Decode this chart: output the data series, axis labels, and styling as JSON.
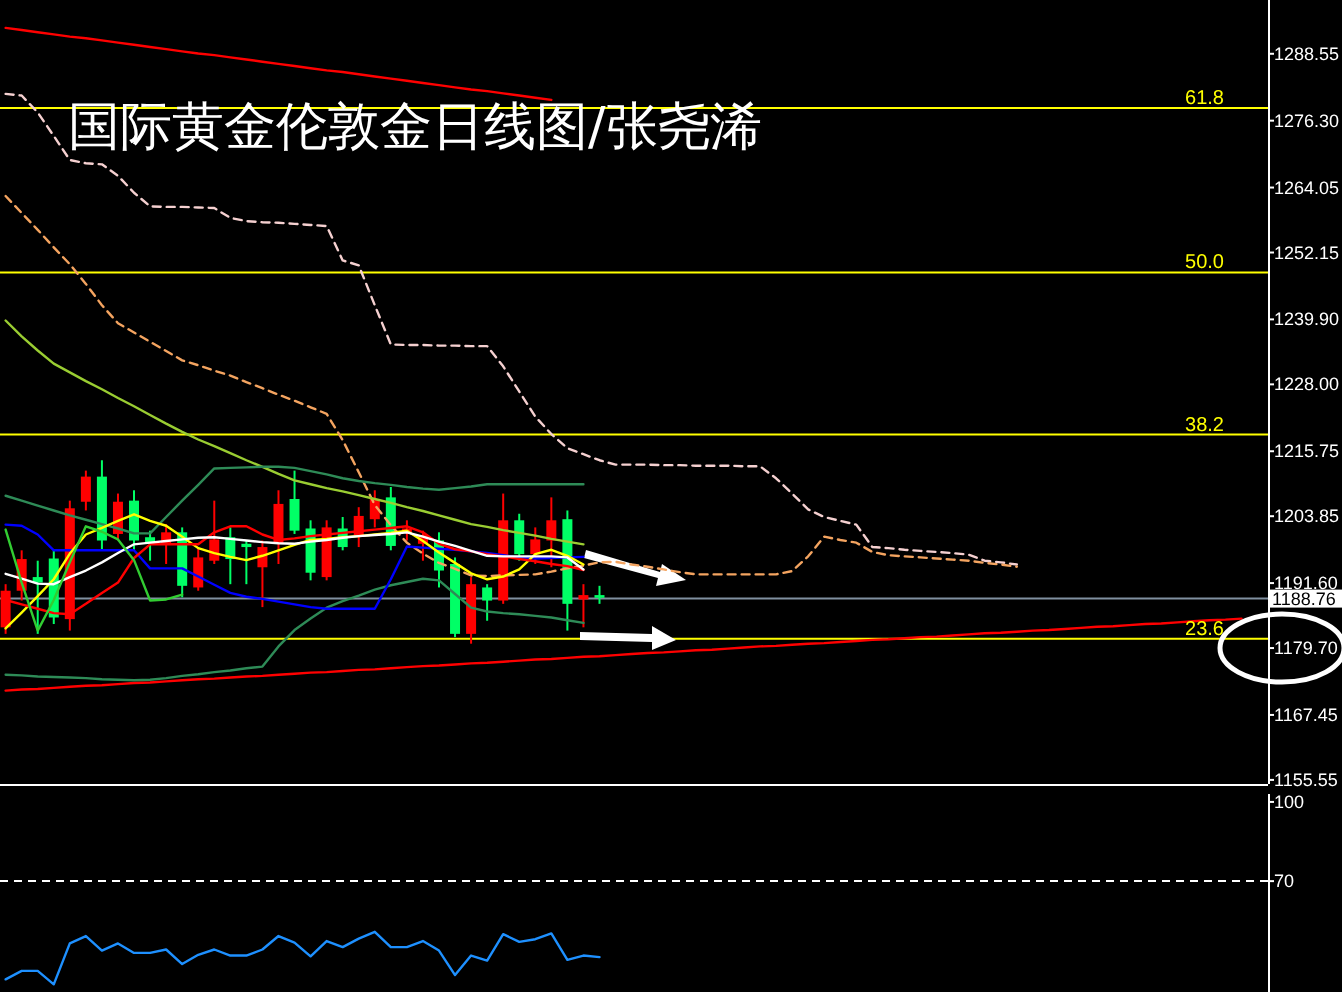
{
  "chart_data": [
    {
      "type": "candlestick",
      "title": "国际黄金伦敦金日线图/张尧浠",
      "tick_labels": "y",
      "ylim": [
        1154.8,
        1298.4
      ],
      "yticks": [
        1288.55,
        {
          "value": 1276.3,
          "label": "1276.30"
        },
        1264.05,
        1252.15,
        {
          "value": 1239.9,
          "label": "1239.90"
        },
        {
          "value": 1228,
          "label": "1228.00"
        },
        1215.75,
        1203.85,
        {
          "value": 1191.6,
          "label": "1191.60"
        },
        {
          "value": 1179.7,
          "label": "1179.70"
        },
        1167.45,
        1155.55
      ],
      "categories": [
        null,
        null,
        null,
        null,
        null,
        null,
        null,
        null,
        null,
        null,
        null,
        null,
        null,
        null,
        null,
        null,
        null,
        null,
        null,
        null,
        null,
        null,
        null,
        null,
        null,
        null,
        null,
        null,
        null,
        null,
        null,
        null,
        null,
        null,
        null,
        null,
        null,
        null,
        null,
        null,
        null,
        null,
        null,
        null,
        null,
        null,
        null,
        null,
        null,
        null,
        null,
        null,
        null,
        null,
        null,
        null,
        null,
        null,
        null,
        null,
        null,
        null,
        null,
        null,
        null,
        null,
        null,
        null,
        null,
        null,
        null,
        null,
        null,
        null,
        null,
        null,
        null,
        null,
        null
      ],
      "ohlc": [
        [
          1190.2,
          1191.4,
          1182.3,
          1183.5
        ],
        [
          1196.0,
          1197.6,
          1188.4,
          1190.2
        ],
        [
          1191.7,
          1195.7,
          1182.3,
          1192.7
        ],
        [
          1185.3,
          1197.6,
          1184.1,
          1196.1
        ],
        [
          1205.3,
          1206.7,
          1182.9,
          1185.0
        ],
        [
          1211.1,
          1212.2,
          1204.9,
          1206.5
        ],
        [
          1199.4,
          1214.1,
          1197.6,
          1211.1
        ],
        [
          1206.5,
          1208.0,
          1199.4,
          1200.6
        ],
        [
          1199.4,
          1208.6,
          1197.6,
          1206.7
        ],
        [
          1198.8,
          1201.2,
          1195.7,
          1200.0
        ],
        [
          1200.9,
          1202.4,
          1195.1,
          1198.8
        ],
        [
          1191.1,
          1201.8,
          1189.0,
          1200.9
        ],
        [
          1196.3,
          1198.2,
          1190.2,
          1190.8
        ],
        [
          1199.6,
          1206.7,
          1195.1,
          1195.7
        ],
        [
          1196.0,
          1201.8,
          1191.4,
          1200.0
        ],
        [
          1198.2,
          1199.4,
          1191.4,
          1198.8
        ],
        [
          1198.2,
          1199.4,
          1187.2,
          1194.5
        ],
        [
          1206.1,
          1208.6,
          1195.1,
          1198.8
        ],
        [
          1201.2,
          1212.2,
          1200.6,
          1207.0
        ],
        [
          1193.5,
          1203.1,
          1192.1,
          1201.6
        ],
        [
          1201.8,
          1203.1,
          1192.1,
          1192.7
        ],
        [
          1198.2,
          1203.7,
          1197.6,
          1201.6
        ],
        [
          1203.9,
          1205.5,
          1198.2,
          1200.4
        ],
        [
          1207.0,
          1208.6,
          1201.8,
          1203.3
        ],
        [
          1198.4,
          1209.2,
          1197.6,
          1207.3
        ],
        [
          1201.6,
          1203.1,
          1199.4,
          1200.9
        ],
        [
          1200.4,
          1201.2,
          1195.7,
          1198.8
        ],
        [
          1193.9,
          1200.9,
          1190.8,
          1199.4
        ],
        [
          1182.3,
          1196.3,
          1181.7,
          1195.1
        ],
        [
          1191.4,
          1192.7,
          1180.5,
          1182.3
        ],
        [
          1188.4,
          1191.4,
          1184.7,
          1190.8
        ],
        [
          1203.1,
          1208.0,
          1187.8,
          1188.4
        ],
        [
          1196.9,
          1204.3,
          1195.7,
          1203.1
        ],
        [
          1199.6,
          1201.8,
          1195.1,
          1196.9
        ],
        [
          1203.1,
          1207.3,
          1194.5,
          1199.4
        ],
        [
          1187.8,
          1204.9,
          1182.9,
          1203.3
        ],
        [
          1189.4,
          1191.4,
          1183.5,
          1188.6
        ],
        [
          1188.9,
          1191.1,
          1187.8,
          1189.4
        ],
        null,
        null,
        null,
        null,
        null,
        null,
        null,
        null,
        null,
        null,
        null,
        null,
        null,
        null,
        null,
        null,
        null,
        null,
        null,
        null,
        null,
        null,
        null,
        null,
        null,
        null,
        null,
        null,
        null,
        null,
        null,
        null,
        null,
        null,
        null,
        null,
        null,
        null,
        null,
        null,
        null
      ],
      "colors": [
        "#ff0000",
        "#ff0000",
        "#00ff66",
        "#00ff66",
        "#ff0000",
        "#ff0000",
        "#00ff66",
        "#ff0000",
        "#00ff66",
        "#00ff66",
        "#ff0000",
        "#00ff66",
        "#ff0000",
        "#ff0000",
        "#00ff66",
        "#00ff66",
        "#ff0000",
        "#ff0000",
        "#00ff66",
        "#00ff66",
        "#ff0000",
        "#00ff66",
        "#ff0000",
        "#ff0000",
        "#00ff66",
        "#ff0000",
        "#ff0000",
        "#00ff66",
        "#00ff66",
        "#ff0000",
        "#00ff66",
        "#ff0000",
        "#00ff66",
        "#ff0000",
        "#ff0000",
        "#00ff66",
        "#ff0000",
        "#00ff66",
        null,
        null,
        null,
        null,
        null,
        null,
        null,
        null,
        null,
        null,
        null,
        null,
        null,
        null,
        null,
        null,
        null,
        null,
        null,
        null,
        null,
        null,
        null,
        null,
        null,
        null,
        null,
        null,
        null,
        null,
        null,
        null,
        null,
        null,
        null,
        null,
        null,
        null,
        null,
        null,
        null
      ],
      "series": [
        {
          "type": "line",
          "color": "#ff0000",
          "values": [
            1293.3,
            1292.9,
            1292.5,
            1292.1,
            1291.7,
            1291.4,
            1291.0,
            1290.6,
            1290.2,
            1289.8,
            1289.4,
            1289.0,
            1288.6,
            1288.3,
            1287.9,
            1287.5,
            1287.1,
            1286.7,
            1286.3,
            1285.9,
            1285.5,
            1285.2,
            1284.8,
            1284.4,
            1284.0,
            1283.6,
            1283.2,
            1282.8,
            1282.4,
            1282.0,
            1281.7,
            1281.3,
            1280.9,
            1280.5,
            1280.1,
            null,
            null,
            null,
            null,
            null,
            null,
            null,
            null,
            null,
            null,
            null,
            null,
            null,
            null,
            null,
            null,
            null,
            null,
            null,
            null,
            null,
            null,
            null,
            null,
            null,
            null,
            null,
            null,
            null,
            null,
            null,
            null,
            null,
            null,
            null,
            null,
            null,
            null,
            null,
            null,
            null,
            null,
            null,
            null
          ]
        },
        {
          "type": "line",
          "color": "#ff0000",
          "values": [
            1171.9,
            1172.1,
            1172.2,
            1172.4,
            1172.6,
            1172.8,
            1172.9,
            1173.1,
            1173.3,
            1173.4,
            1173.6,
            1173.8,
            1174.0,
            1174.1,
            1174.3,
            1174.5,
            1174.6,
            1174.8,
            1175.0,
            1175.2,
            1175.3,
            1175.5,
            1175.7,
            1175.8,
            1176.0,
            1176.2,
            1176.4,
            1176.5,
            1176.7,
            1176.9,
            1177.0,
            1177.2,
            1177.4,
            1177.6,
            1177.7,
            1177.9,
            1178.1,
            1178.2,
            1178.4,
            1178.6,
            1178.8,
            1178.9,
            1179.1,
            1179.3,
            1179.4,
            1179.6,
            1179.8,
            1180.0,
            1180.1,
            1180.3,
            1180.5,
            1180.6,
            1180.8,
            1181.0,
            1181.2,
            1181.3,
            1181.5,
            1181.7,
            1181.8,
            1182.0,
            1182.2,
            1182.4,
            1182.5,
            1182.7,
            1182.9,
            1183.0,
            1183.2,
            1183.4,
            1183.6,
            1183.7,
            1183.9,
            1184.1,
            1184.2,
            1184.4,
            1184.6,
            1184.8,
            1184.9,
            1185.1,
            null
          ]
        },
        {
          "type": "line",
          "color": "#f5d0d0",
          "line_style": "dashed",
          "values": [
            1281.2,
            1280.9,
            1277.8,
            1273.5,
            1269.1,
            1268.5,
            1268.3,
            1266.2,
            1263.1,
            1260.6,
            1260.5,
            1260.5,
            1260.4,
            1260.3,
            1258.5,
            1257.9,
            1257.7,
            1257.6,
            1257.4,
            1257.2,
            1257.0,
            1250.7,
            1249.8,
            1242.5,
            1235.3,
            1235.2,
            1235.2,
            1235.1,
            1235.1,
            1235.0,
            1235.0,
            1231.3,
            1226.7,
            1222.1,
            1218.9,
            1216.3,
            1215.2,
            1214.1,
            1213.3,
            1213.3,
            1213.3,
            1213.2,
            1213.2,
            1213.1,
            1213.1,
            1213.1,
            1213.0,
            1213.0,
            1210.8,
            1208.0,
            1205.1,
            1203.7,
            1203.0,
            1202.3,
            1198.2,
            1198.0,
            1197.7,
            1197.5,
            1197.3,
            1197.1,
            1196.8,
            1195.7,
            1195.4,
            1195.0,
            null,
            null,
            null,
            null,
            null,
            null,
            null,
            null,
            null,
            null,
            null,
            null,
            null,
            null,
            null
          ]
        },
        {
          "type": "line",
          "color": "#f4a460",
          "line_style": "dashed",
          "values": [
            1262.5,
            1259.4,
            1256.3,
            1253.1,
            1250.0,
            1246.4,
            1242.5,
            1239.2,
            1237.5,
            1235.8,
            1234.1,
            1232.4,
            1231.5,
            1230.5,
            1229.6,
            1228.4,
            1227.3,
            1226.1,
            1225.0,
            1223.8,
            1222.6,
            1217.8,
            1211.9,
            1205.9,
            1202.2,
            1199.0,
            1197.0,
            1195.3,
            1194.2,
            1193.0,
            1192.9,
            1193.0,
            1193.1,
            1193.2,
            1193.7,
            1194.3,
            1194.8,
            1195.4,
            1195.5,
            1195.0,
            1194.6,
            1194.1,
            1193.6,
            1193.2,
            1193.2,
            1193.2,
            1193.2,
            1193.2,
            1193.2,
            1193.8,
            1196.5,
            1200.1,
            1199.5,
            1199.0,
            1197.3,
            1196.7,
            1196.5,
            1196.3,
            1196.1,
            1195.9,
            1195.7,
            1195.3,
            1195.0,
            1194.6,
            null,
            null,
            null,
            null,
            null,
            null,
            null,
            null,
            null,
            null,
            null,
            null,
            null,
            null,
            null
          ]
        },
        {
          "type": "line",
          "color": "#9acd32",
          "values": [
            1239.7,
            1236.8,
            1234.2,
            1231.8,
            1230.2,
            1228.6,
            1227.1,
            1225.5,
            1224.0,
            1222.4,
            1220.8,
            1219.3,
            1217.9,
            1216.7,
            1215.4,
            1214.1,
            1212.9,
            1211.6,
            1210.4,
            1209.7,
            1209.0,
            1208.4,
            1207.7,
            1207.0,
            1206.3,
            1205.5,
            1204.8,
            1204.0,
            1203.2,
            1202.4,
            1201.9,
            1201.3,
            1200.8,
            1200.3,
            1199.7,
            1199.2,
            1198.7,
            null,
            null,
            null,
            null,
            null,
            null,
            null,
            null,
            null,
            null,
            null,
            null,
            null,
            null,
            null,
            null,
            null,
            null,
            null,
            null,
            null,
            null,
            null,
            null,
            null,
            null,
            null,
            null,
            null,
            null,
            null,
            null,
            null,
            null,
            null,
            null,
            null,
            null,
            null,
            null,
            null,
            null
          ]
        },
        {
          "type": "line",
          "color": "#2e8b57",
          "values": [
            1207.6,
            1206.7,
            1205.8,
            1204.9,
            1204.0,
            1203.2,
            1202.4,
            1201.6,
            1200.7,
            1200.7,
            1203.7,
            1206.7,
            1209.6,
            1212.6,
            1212.7,
            1212.8,
            1212.9,
            1212.9,
            1212.7,
            1212.1,
            1211.5,
            1210.8,
            1210.3,
            1209.9,
            1209.6,
            1209.2,
            1208.9,
            1208.7,
            1209.0,
            1209.3,
            1209.7,
            1209.7,
            1209.7,
            1209.7,
            1209.7,
            1209.7,
            1209.7,
            null,
            null,
            null,
            null,
            null,
            null,
            null,
            null,
            null,
            null,
            null,
            null,
            null,
            null,
            null,
            null,
            null,
            null,
            null,
            null,
            null,
            null,
            null,
            null,
            null,
            null,
            null,
            null,
            null,
            null,
            null,
            null,
            null,
            null,
            null,
            null,
            null,
            null,
            null,
            null,
            null,
            null
          ]
        },
        {
          "type": "line",
          "color": "#2e8b57",
          "values": [
            1174.8,
            1174.7,
            1174.5,
            1174.4,
            1174.3,
            1174.2,
            1174.0,
            1173.9,
            1173.8,
            1173.9,
            1174.2,
            1174.6,
            1174.9,
            1175.3,
            1175.6,
            1176.0,
            1176.3,
            1180.0,
            1183.0,
            1185.1,
            1187.1,
            1188.3,
            1189.3,
            1190.4,
            1191.2,
            1191.8,
            1192.4,
            1192.1,
            1189.6,
            1187.1,
            1186.4,
            1186.1,
            1185.9,
            1185.6,
            1185.3,
            1184.8,
            1184.3,
            null,
            null,
            null,
            null,
            null,
            null,
            null,
            null,
            null,
            null,
            null,
            null,
            null,
            null,
            null,
            null,
            null,
            null,
            null,
            null,
            null,
            null,
            null,
            null,
            null,
            null,
            null,
            null,
            null,
            null,
            null,
            null,
            null,
            null,
            null,
            null,
            null,
            null,
            null,
            null,
            null,
            null
          ]
        },
        {
          "type": "line",
          "color": "#0000ff",
          "values": [
            1202.3,
            1202.1,
            1200.5,
            1197.6,
            1197.6,
            1197.6,
            1197.6,
            1197.6,
            1197.6,
            1194.3,
            1194.3,
            1194.3,
            1192.8,
            1191.3,
            1189.8,
            1189.1,
            1188.7,
            1188.2,
            1187.7,
            1187.2,
            1186.9,
            1186.9,
            1186.9,
            1186.9,
            1192.3,
            1198.3,
            1198.1,
            1197.9,
            1197.7,
            1197.4,
            1197.1,
            1196.7,
            1196.3,
            1196.1,
            1196.2,
            1196.3,
            1196.4,
            null,
            null,
            null,
            null,
            null,
            null,
            null,
            null,
            null,
            null,
            null,
            null,
            null,
            null,
            null,
            null,
            null,
            null,
            null,
            null,
            null,
            null,
            null,
            null,
            null,
            null,
            null,
            null,
            null,
            null,
            null,
            null,
            null,
            null,
            null,
            null,
            null,
            null,
            null,
            null,
            null,
            null
          ]
        },
        {
          "type": "line",
          "color": "#ffff00",
          "values": [
            1183.3,
            1186.2,
            1189.2,
            1192.3,
            1197.0,
            1200.5,
            1201.7,
            1203.0,
            1204.2,
            1203.0,
            1202.1,
            1200.1,
            1198.0,
            1197.1,
            1196.4,
            1195.8,
            1196.6,
            1197.6,
            1198.6,
            1199.5,
            1199.7,
            1200.0,
            1200.2,
            1200.5,
            1200.8,
            1201.2,
            1199.3,
            1197.2,
            1195.3,
            1193.4,
            1192.3,
            1192.8,
            1194.1,
            1196.9,
            1197.7,
            1196.6,
            1195.0,
            null,
            null,
            null,
            null,
            null,
            null,
            null,
            null,
            null,
            null,
            null,
            null,
            null,
            null,
            null,
            null,
            null,
            null,
            null,
            null,
            null,
            null,
            null,
            null,
            null,
            null,
            null,
            null,
            null,
            null,
            null,
            null,
            null,
            null,
            null,
            null,
            null,
            null,
            null,
            null,
            null,
            null
          ]
        },
        {
          "type": "line",
          "color": "#ff0000",
          "values": [
            1188.5,
            1187.7,
            1186.9,
            1186.1,
            1185.9,
            1187.8,
            1189.8,
            1191.7,
            1196.2,
            1198.7,
            1198.7,
            1198.7,
            1198.7,
            1200.9,
            1202.0,
            1202.0,
            1200.5,
            1199.5,
            1199.8,
            1200.2,
            1200.5,
            1200.8,
            1201.1,
            1201.4,
            1201.7,
            1202.0,
            1200.9,
            1198.8,
            1197.8,
            1197.4,
            1196.9,
            1196.5,
            1196.0,
            1195.6,
            1195.1,
            1194.7,
            1194.0,
            null,
            null,
            null,
            null,
            null,
            null,
            null,
            null,
            null,
            null,
            null,
            null,
            null,
            null,
            null,
            null,
            null,
            null,
            null,
            null,
            null,
            null,
            null,
            null,
            null,
            null,
            null,
            null,
            null,
            null,
            null,
            null,
            null,
            null,
            null,
            null,
            null,
            null,
            null,
            null,
            null,
            null
          ]
        },
        {
          "type": "line",
          "color": "#ffffff",
          "values": [
            1193.3,
            1192.4,
            1191.5,
            1191.4,
            1192.7,
            1193.9,
            1195.4,
            1197.1,
            1198.7,
            1199.0,
            1199.3,
            1199.6,
            1199.9,
            1200.0,
            1199.7,
            1199.4,
            1199.1,
            1198.9,
            1198.8,
            1199.2,
            1199.5,
            1199.9,
            1200.2,
            1200.4,
            1200.6,
            1200.9,
            1200.1,
            1199.2,
            1198.4,
            1197.5,
            1196.6,
            1196.5,
            1196.5,
            1196.5,
            1196.5,
            1196.3,
            1194.1,
            null,
            null,
            null,
            null,
            null,
            null,
            null,
            null,
            null,
            null,
            null,
            null,
            null,
            null,
            null,
            null,
            null,
            null,
            null,
            null,
            null,
            null,
            null,
            null,
            null,
            null,
            null,
            null,
            null,
            null,
            null,
            null,
            null,
            null,
            null,
            null,
            null,
            null,
            null,
            null,
            null,
            null
          ]
        },
        {
          "type": "line",
          "color": "#32cd32",
          "values": [
            1201.4,
            1191.7,
            1182.9,
            1188.5,
            1195.4,
            1202.0,
            1201.0,
            1199.6,
            1195.8,
            1188.4,
            1188.6,
            1189.5,
            null,
            null,
            null,
            null,
            null,
            null,
            null,
            null,
            null,
            null,
            null,
            null,
            null,
            null,
            null,
            null,
            null,
            null,
            null,
            null,
            null,
            null,
            null,
            null,
            null,
            null,
            null,
            null,
            null,
            null,
            null,
            null,
            null,
            null,
            null,
            null,
            null,
            null,
            null,
            null,
            null,
            null,
            null,
            null,
            null,
            null,
            null,
            null,
            null,
            null,
            null,
            null,
            null,
            null,
            null,
            null,
            null,
            null,
            null,
            null,
            null,
            null,
            null,
            null,
            null,
            null,
            null
          ]
        }
      ],
      "ref_lines": [
        {
          "axis": "y",
          "value": 1278.6,
          "color": "#ffff00"
        },
        {
          "axis": "y",
          "value": 1248.5,
          "color": "#ffff00"
        },
        {
          "axis": "y",
          "value": 1218.8,
          "color": "#ffff00"
        },
        {
          "axis": "y",
          "value": 1181.4,
          "color": "#ffff00"
        },
        {
          "axis": "y",
          "value": 1188.76,
          "label": "1188.76",
          "color": "#8090a0"
        }
      ],
      "annotations": [
        {
          "text": "61.8",
          "y": 1278.6
        },
        {
          "text": "50.0",
          "y": 1248.5
        },
        {
          "text": "38.2",
          "y": 1218.8
        },
        {
          "text": "23.6",
          "y": 1181.4
        }
      ]
    },
    {
      "type": "line",
      "tick_labels": "y",
      "ylim": [
        28,
        103
      ],
      "yticks": [
        100,
        70
      ],
      "categories": [
        null,
        null,
        null,
        null,
        null,
        null,
        null,
        null,
        null,
        null,
        null,
        null,
        null,
        null,
        null,
        null,
        null,
        null,
        null,
        null,
        null,
        null,
        null,
        null,
        null,
        null,
        null,
        null,
        null,
        null,
        null,
        null,
        null,
        null,
        null,
        null,
        null,
        null,
        null,
        null,
        null,
        null,
        null,
        null,
        null,
        null,
        null,
        null,
        null,
        null,
        null,
        null,
        null,
        null,
        null,
        null,
        null,
        null,
        null,
        null,
        null,
        null,
        null,
        null,
        null,
        null,
        null,
        null,
        null,
        null,
        null,
        null,
        null,
        null,
        null,
        null,
        null,
        null,
        null
      ],
      "series": [
        {
          "color": "#1e90ff",
          "values": [
            32.8,
            36.0,
            36.0,
            30.9,
            46.4,
            49.2,
            43.7,
            46.4,
            42.8,
            42.8,
            44.1,
            38.6,
            42.1,
            44.1,
            41.8,
            41.8,
            44.1,
            49.2,
            46.7,
            41.5,
            47.3,
            45.0,
            48.2,
            50.8,
            45.0,
            45.0,
            47.3,
            43.7,
            34.4,
            41.8,
            39.9,
            49.9,
            47.0,
            48.0,
            50.2,
            40.2,
            41.8,
            41.2,
            null,
            null,
            null,
            null,
            null,
            null,
            null,
            null,
            null,
            null,
            null,
            null,
            null,
            null,
            null,
            null,
            null,
            null,
            null,
            null,
            null,
            null,
            null,
            null,
            null,
            null,
            null,
            null,
            null,
            null,
            null,
            null,
            null,
            null,
            null,
            null,
            null,
            null,
            null,
            null,
            null
          ]
        }
      ],
      "ref_lines": [
        {
          "axis": "y",
          "value": 70,
          "color": "#ffffff",
          "line_style": "dashed"
        }
      ]
    }
  ]
}
